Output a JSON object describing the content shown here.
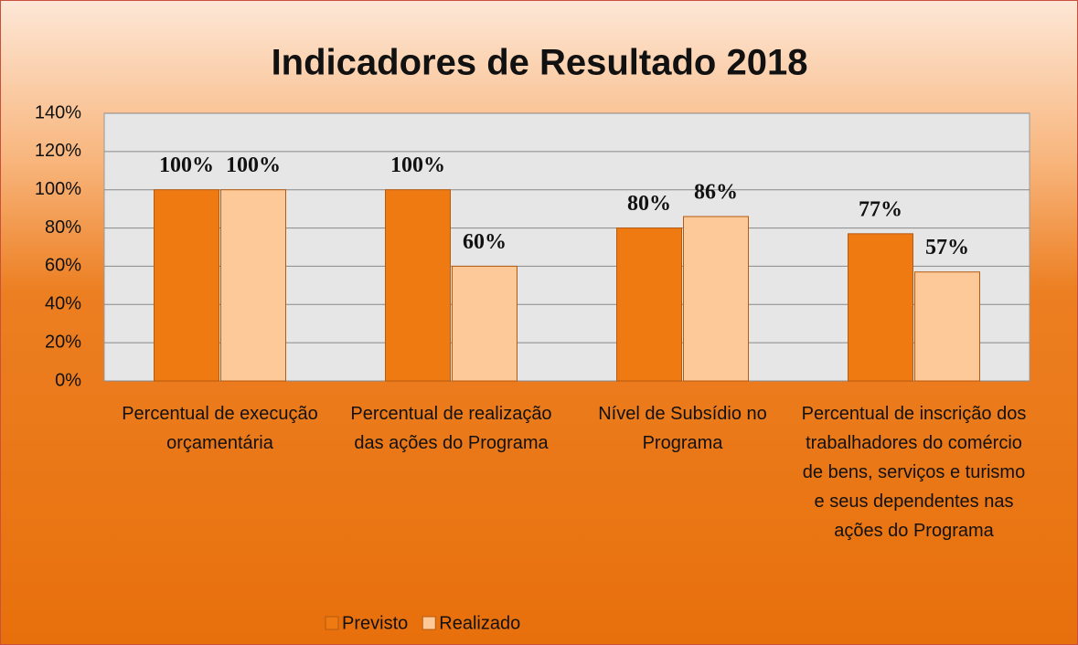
{
  "chart_data": {
    "type": "bar",
    "title": "Indicadores de Resultado 2018",
    "categories": [
      "Percentual de execução orçamentária",
      "Percentual de realização das ações do Programa",
      "Nível de Subsídio no Programa",
      "Percentual de inscrição dos trabalhadores do comércio de bens, serviços e turismo e seus dependentes nas ações do Programa"
    ],
    "series": [
      {
        "name": "Previsto",
        "color": "#f07a12",
        "values": [
          100,
          100,
          80,
          77
        ],
        "value_labels": [
          "100%",
          "100%",
          "80%",
          "77%"
        ]
      },
      {
        "name": "Realizado",
        "color": "#fdc998",
        "values": [
          100,
          60,
          86,
          57
        ],
        "value_labels": [
          "100%",
          "60%",
          "86%",
          "57%"
        ]
      }
    ],
    "ylim": [
      0,
      140
    ],
    "yticks": [
      {
        "value": 0,
        "label": "0%"
      },
      {
        "value": 20,
        "label": "20%"
      },
      {
        "value": 40,
        "label": "40%"
      },
      {
        "value": 60,
        "label": "60%"
      },
      {
        "value": 80,
        "label": "80%"
      },
      {
        "value": 100,
        "label": "100%"
      },
      {
        "value": 120,
        "label": "120%"
      },
      {
        "value": 140,
        "label": "140%"
      }
    ],
    "grid": true,
    "legend": "bottom"
  }
}
